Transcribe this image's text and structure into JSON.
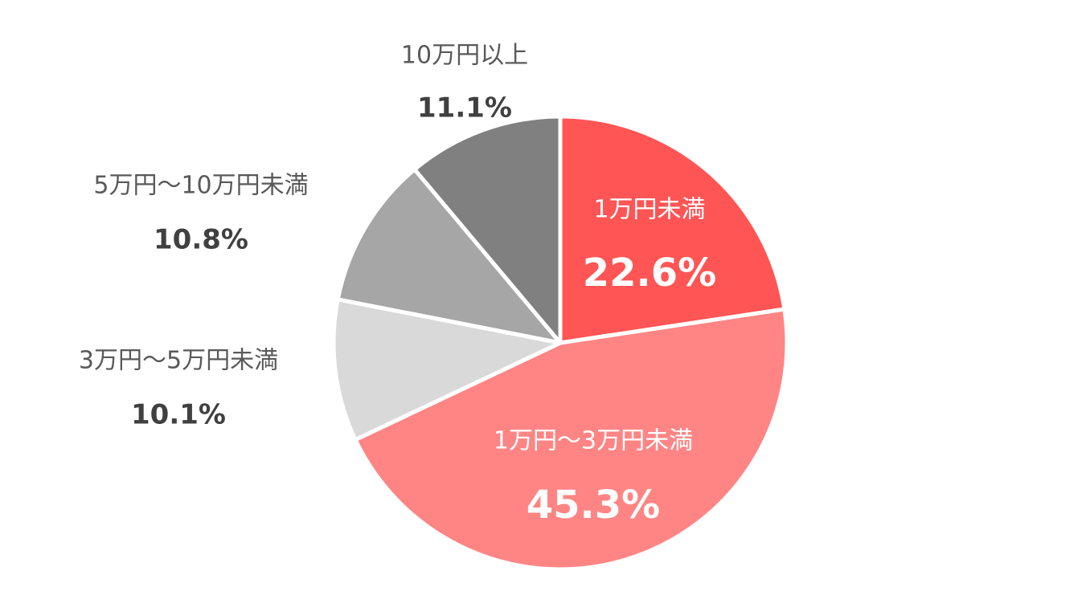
{
  "chart_data": {
    "type": "pie",
    "categories": [
      "1万円未満",
      "1万円〜3万円未満",
      "3万円〜5万円未満",
      "5万円〜10万円未満",
      "10万円以上"
    ],
    "values": [
      22.6,
      45.3,
      10.1,
      10.8,
      11.1
    ],
    "value_labels": [
      "22.6%",
      "45.3%",
      "10.1%",
      "10.8%",
      "11.1%"
    ],
    "colors": [
      "#ff5555",
      "#ff8585",
      "#d9d9d9",
      "#a6a6a6",
      "#808080"
    ]
  }
}
